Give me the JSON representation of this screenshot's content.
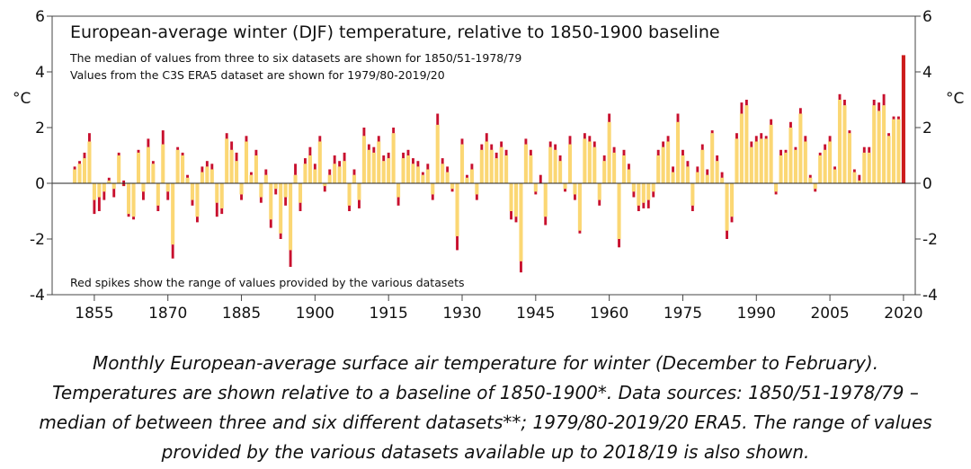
{
  "chart_data": {
    "type": "bar",
    "title": "European-average winter (DJF) temperature, relative to 1850-1900 baseline",
    "subtitle_lines": [
      "The median of values from three to six datasets are shown for 1850/51-1978/79",
      "Values from the C3S ERA5 dataset are shown for 1979/80-2019/20"
    ],
    "annotation": "Red spikes show the range of values provided by the various datasets",
    "y_label": "°C",
    "caption_lines": [
      "Monthly European-average surface air temperature for winter (December to February).",
      "Temperatures are shown relative to a baseline of 1850-1900*. Data sources: 1850/51-1978/79 –",
      "median of between three and six different datasets**; 1979/80-2019/20 ERA5. The range of values",
      "provided by the various datasets available up to 2018/19 is also shown."
    ],
    "x": [
      1851,
      1852,
      1853,
      1854,
      1855,
      1856,
      1857,
      1858,
      1859,
      1860,
      1861,
      1862,
      1863,
      1864,
      1865,
      1866,
      1867,
      1868,
      1869,
      1870,
      1871,
      1872,
      1873,
      1874,
      1875,
      1876,
      1877,
      1878,
      1879,
      1880,
      1881,
      1882,
      1883,
      1884,
      1885,
      1886,
      1887,
      1888,
      1889,
      1890,
      1891,
      1892,
      1893,
      1894,
      1895,
      1896,
      1897,
      1898,
      1899,
      1900,
      1901,
      1902,
      1903,
      1904,
      1905,
      1906,
      1907,
      1908,
      1909,
      1910,
      1911,
      1912,
      1913,
      1914,
      1915,
      1916,
      1917,
      1918,
      1919,
      1920,
      1921,
      1922,
      1923,
      1924,
      1925,
      1926,
      1927,
      1928,
      1929,
      1930,
      1931,
      1932,
      1933,
      1934,
      1935,
      1936,
      1937,
      1938,
      1939,
      1940,
      1941,
      1942,
      1943,
      1944,
      1945,
      1946,
      1947,
      1948,
      1949,
      1950,
      1951,
      1952,
      1953,
      1954,
      1955,
      1956,
      1957,
      1958,
      1959,
      1960,
      1961,
      1962,
      1963,
      1964,
      1965,
      1966,
      1967,
      1968,
      1969,
      1970,
      1971,
      1972,
      1973,
      1974,
      1975,
      1976,
      1977,
      1978,
      1979,
      1980,
      1981,
      1982,
      1983,
      1984,
      1985,
      1986,
      1987,
      1988,
      1989,
      1990,
      1991,
      1992,
      1993,
      1994,
      1995,
      1996,
      1997,
      1998,
      1999,
      2000,
      2001,
      2002,
      2003,
      2004,
      2005,
      2006,
      2007,
      2008,
      2009,
      2010,
      2011,
      2012,
      2013,
      2014,
      2015,
      2016,
      2017,
      2018,
      2019,
      2020
    ],
    "values": [
      0.5,
      0.7,
      0.9,
      1.5,
      -0.6,
      -0.5,
      -0.3,
      0.1,
      -0.2,
      1.0,
      -0.1,
      -1.1,
      -1.2,
      1.1,
      -0.3,
      1.3,
      0.7,
      -0.8,
      1.4,
      -0.3,
      -2.2,
      1.2,
      1.0,
      0.2,
      -0.6,
      -1.2,
      0.4,
      0.6,
      0.5,
      -0.7,
      -0.9,
      1.6,
      1.2,
      0.8,
      -0.4,
      1.5,
      0.3,
      1.0,
      -0.5,
      0.3,
      -1.3,
      -0.2,
      -1.8,
      -0.5,
      -2.4,
      0.3,
      -0.7,
      0.7,
      1.0,
      0.5,
      1.5,
      -0.1,
      0.3,
      0.7,
      0.6,
      0.8,
      -0.8,
      0.3,
      -0.6,
      1.7,
      1.2,
      1.1,
      1.5,
      0.8,
      0.9,
      1.8,
      -0.5,
      0.9,
      1.0,
      0.7,
      0.6,
      0.3,
      0.5,
      -0.4,
      2.1,
      0.7,
      0.4,
      -0.2,
      -1.9,
      1.4,
      0.2,
      0.5,
      -0.4,
      1.2,
      1.5,
      1.2,
      0.9,
      1.3,
      1.0,
      -1.0,
      -1.2,
      -2.8,
      1.4,
      1.0,
      -0.3,
      0.0,
      -1.2,
      1.3,
      1.2,
      0.8,
      -0.2,
      1.4,
      -0.4,
      -1.7,
      1.6,
      1.5,
      1.3,
      -0.6,
      0.8,
      2.2,
      1.1,
      -2.0,
      1.0,
      0.5,
      -0.3,
      -0.8,
      -0.7,
      -0.6,
      -0.3,
      1.0,
      1.3,
      1.5,
      0.4,
      2.2,
      1.0,
      0.6,
      -0.8,
      0.4,
      1.2,
      0.3,
      1.8,
      0.8,
      0.2,
      -1.7,
      -1.2,
      1.6,
      2.5,
      2.8,
      1.3,
      1.5,
      1.6,
      1.6,
      2.1,
      -0.3,
      1.0,
      1.1,
      2.0,
      1.2,
      2.5,
      1.5,
      0.2,
      -0.2,
      1.0,
      1.2,
      1.5,
      0.5,
      3.0,
      2.8,
      1.8,
      0.4,
      0.1,
      1.1,
      1.1,
      2.8,
      2.6,
      2.8,
      1.7,
      2.3,
      2.3,
      4.6
    ],
    "range_ends": [
      0.6,
      0.8,
      1.1,
      1.8,
      -1.1,
      -1.0,
      -0.6,
      0.2,
      -0.5,
      1.1,
      0.1,
      -1.2,
      -1.3,
      1.2,
      -0.6,
      1.6,
      0.8,
      -1.0,
      1.9,
      -0.6,
      -2.7,
      1.3,
      1.1,
      0.3,
      -0.8,
      -1.4,
      0.6,
      0.8,
      0.7,
      -1.2,
      -1.1,
      1.8,
      1.5,
      1.1,
      -0.6,
      1.7,
      0.4,
      1.2,
      -0.7,
      0.5,
      -1.6,
      -0.4,
      -2.0,
      -0.8,
      -3.0,
      0.7,
      -1.0,
      0.9,
      1.3,
      0.7,
      1.7,
      -0.3,
      0.5,
      1.0,
      0.8,
      1.1,
      -1.0,
      0.5,
      -0.9,
      2.0,
      1.4,
      1.3,
      1.7,
      1.0,
      1.1,
      2.0,
      -0.8,
      1.1,
      1.2,
      0.9,
      0.8,
      0.4,
      0.7,
      -0.6,
      2.5,
      0.9,
      0.6,
      -0.3,
      -2.4,
      1.6,
      0.3,
      0.7,
      -0.6,
      1.4,
      1.8,
      1.4,
      1.1,
      1.5,
      1.2,
      -1.3,
      -1.4,
      -3.2,
      1.6,
      1.2,
      -0.4,
      0.3,
      -1.5,
      1.5,
      1.4,
      1.0,
      -0.3,
      1.7,
      -0.6,
      -1.8,
      1.8,
      1.7,
      1.5,
      -0.8,
      1.0,
      2.5,
      1.3,
      -2.3,
      1.2,
      0.7,
      -0.5,
      -1.0,
      -0.9,
      -0.9,
      -0.5,
      1.2,
      1.5,
      1.7,
      0.6,
      2.5,
      1.2,
      0.8,
      -1.0,
      0.6,
      1.4,
      0.5,
      1.9,
      1.0,
      0.4,
      -2.0,
      -1.4,
      1.8,
      2.9,
      3.0,
      1.5,
      1.7,
      1.8,
      1.7,
      2.3,
      -0.4,
      1.2,
      1.2,
      2.2,
      1.3,
      2.7,
      1.7,
      0.3,
      -0.3,
      1.1,
      1.4,
      1.7,
      0.6,
      3.2,
      3.0,
      1.9,
      0.5,
      0.3,
      1.3,
      1.3,
      3.0,
      2.9,
      3.2,
      1.8,
      2.4,
      2.4,
      null
    ],
    "color": "#fbd774",
    "spike_color": "#c8102e",
    "latest_color": "#cc1b1b",
    "xlim": [
      1846.4,
      2022.4
    ],
    "xticks": [
      1855,
      1870,
      1885,
      1900,
      1915,
      1930,
      1945,
      1960,
      1975,
      1990,
      2005,
      2020
    ],
    "ylim": [
      -4,
      6
    ],
    "yticks": [
      -4,
      -2,
      0,
      2,
      4,
      6
    ]
  }
}
